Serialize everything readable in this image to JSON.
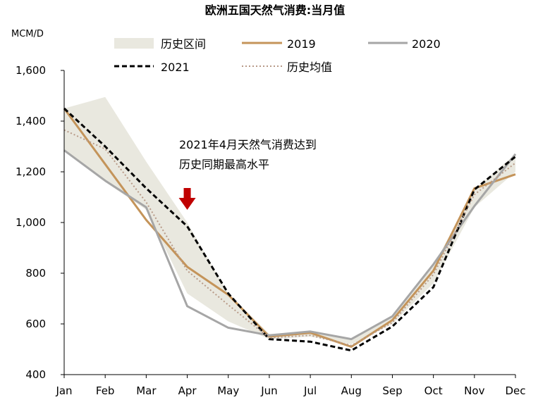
{
  "chart_data": {
    "type": "line",
    "title": "欧洲五国天然气消费:当月值",
    "unit_label": "MCM/D",
    "categories": [
      "Jan",
      "Feb",
      "Mar",
      "Apr",
      "May",
      "Jun",
      "Jul",
      "Aug",
      "Sep",
      "Oct",
      "Nov",
      "Dec"
    ],
    "ylim": [
      400,
      1600
    ],
    "yticks": [
      400,
      600,
      800,
      1000,
      1200,
      1400,
      1600
    ],
    "ytick_labels": [
      "400",
      "600",
      "800",
      "1,000",
      "1,200",
      "1,400",
      "1,600"
    ],
    "grid": false,
    "historical_range": {
      "name": "历史区间",
      "color": "#e9e8df",
      "low": [
        1290,
        1160,
        1050,
        720,
        610,
        540,
        550,
        520,
        600,
        760,
        1060,
        1200
      ],
      "high": [
        1450,
        1495,
        1240,
        1000,
        720,
        560,
        570,
        540,
        630,
        830,
        1130,
        1270
      ]
    },
    "series": [
      {
        "name": "2019",
        "color": "#c4945a",
        "style": "solid",
        "values": [
          1450,
          1230,
          1010,
          825,
          715,
          550,
          565,
          510,
          615,
          810,
          1135,
          1190
        ]
      },
      {
        "name": "2020",
        "color": "#a6a6a6",
        "style": "solid",
        "values": [
          1285,
          1165,
          1060,
          670,
          585,
          555,
          570,
          540,
          630,
          835,
          1065,
          1270
        ]
      },
      {
        "name": "2021",
        "color": "#000000",
        "style": "dashed",
        "values": [
          1450,
          1300,
          1135,
          985,
          720,
          540,
          530,
          495,
          590,
          745,
          1130,
          1260
        ]
      },
      {
        "name": "历史均值",
        "color": "#b89a88",
        "style": "dotted",
        "values": [
          1365,
          1290,
          1080,
          810,
          675,
          545,
          555,
          515,
          605,
          795,
          1110,
          1235
        ]
      }
    ],
    "legend_order": [
      "历史区间",
      "2019",
      "2020",
      "2021",
      "历史均值"
    ],
    "annotation": {
      "line1": "2021年4月天然气消费达到",
      "line2": "历史同期最高水平",
      "arrow_category": "Apr",
      "arrow_color": "#c00000"
    }
  }
}
